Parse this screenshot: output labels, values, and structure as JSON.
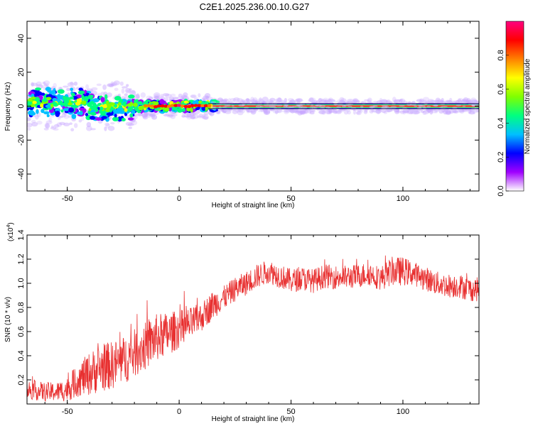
{
  "title": "C2E1.2025.236.00.10.G27",
  "chart_data": [
    {
      "type": "heatmap",
      "xlabel": "Height of straight line (km)",
      "ylabel": "Frequency (Hz)",
      "xlim": [
        -68,
        134
      ],
      "ylim": [
        -50,
        50
      ],
      "x_ticks": [
        -50,
        0,
        50,
        100
      ],
      "y_ticks": [
        -40,
        -20,
        0,
        20,
        40
      ],
      "x_tick_labels": [
        "-50",
        "0",
        "50",
        "100"
      ],
      "y_tick_labels": [
        "-40",
        "-20",
        "0",
        "20",
        "40"
      ],
      "ridge_frequency_hz": 0,
      "colorbar": {
        "label": "Normalized spectral amplitude",
        "range": [
          0,
          1
        ],
        "ticks": [
          0.0,
          0.2,
          0.4,
          0.6,
          0.8
        ],
        "tick_labels": [
          "0.0",
          "0.2",
          "0.4",
          "0.6",
          "0.8"
        ],
        "colors": [
          "#ffffff",
          "#a000ff",
          "#0000ff",
          "#00c0ff",
          "#00ff80",
          "#80ff00",
          "#ffff00",
          "#ff8000",
          "#ff0000",
          "#ff0080"
        ]
      }
    },
    {
      "type": "line",
      "xlabel": "Height of straight line (km)",
      "ylabel": "SNR (10 * v/v)",
      "y_scale_label": "(x10",
      "y_scale_exp": "4",
      "y_scale_close": ")",
      "xlim": [
        -68,
        134
      ],
      "ylim": [
        0.0,
        1.4
      ],
      "x_ticks": [
        -50,
        0,
        50,
        100
      ],
      "y_ticks": [
        0.2,
        0.4,
        0.6,
        0.8,
        1.0,
        1.2,
        1.4
      ],
      "x_tick_labels": [
        "-50",
        "0",
        "50",
        "100"
      ],
      "y_tick_labels": [
        "0.2",
        "0.4",
        "0.6",
        "0.8",
        "1.0",
        "1.2",
        "1.4"
      ],
      "series_color": "#e83030",
      "series": [
        {
          "name": "SNR",
          "x": [
            -68,
            -60,
            -55,
            -50,
            -45,
            -40,
            -35,
            -30,
            -25,
            -20,
            -15,
            -10,
            -5,
            0,
            5,
            10,
            15,
            20,
            25,
            30,
            35,
            40,
            45,
            50,
            55,
            60,
            65,
            70,
            75,
            80,
            85,
            90,
            95,
            100,
            105,
            110,
            115,
            120,
            125,
            130,
            134
          ],
          "y": [
            0.12,
            0.1,
            0.1,
            0.12,
            0.2,
            0.25,
            0.3,
            0.32,
            0.36,
            0.42,
            0.48,
            0.55,
            0.58,
            0.62,
            0.66,
            0.72,
            0.82,
            0.88,
            0.95,
            1.0,
            1.06,
            1.1,
            1.06,
            1.02,
            1.04,
            1.02,
            1.06,
            1.05,
            1.05,
            1.06,
            1.08,
            1.04,
            1.1,
            1.1,
            1.08,
            1.04,
            1.0,
            0.98,
            0.98,
            0.95,
            0.95
          ],
          "noise_amplitude": [
            0.08,
            0.08,
            0.08,
            0.1,
            0.14,
            0.18,
            0.2,
            0.2,
            0.2,
            0.2,
            0.2,
            0.2,
            0.18,
            0.16,
            0.14,
            0.12,
            0.12,
            0.1,
            0.1,
            0.1,
            0.1,
            0.1,
            0.1,
            0.1,
            0.1,
            0.1,
            0.1,
            0.1,
            0.1,
            0.1,
            0.1,
            0.1,
            0.12,
            0.12,
            0.1,
            0.1,
            0.1,
            0.1,
            0.1,
            0.1,
            0.1
          ]
        }
      ]
    }
  ]
}
